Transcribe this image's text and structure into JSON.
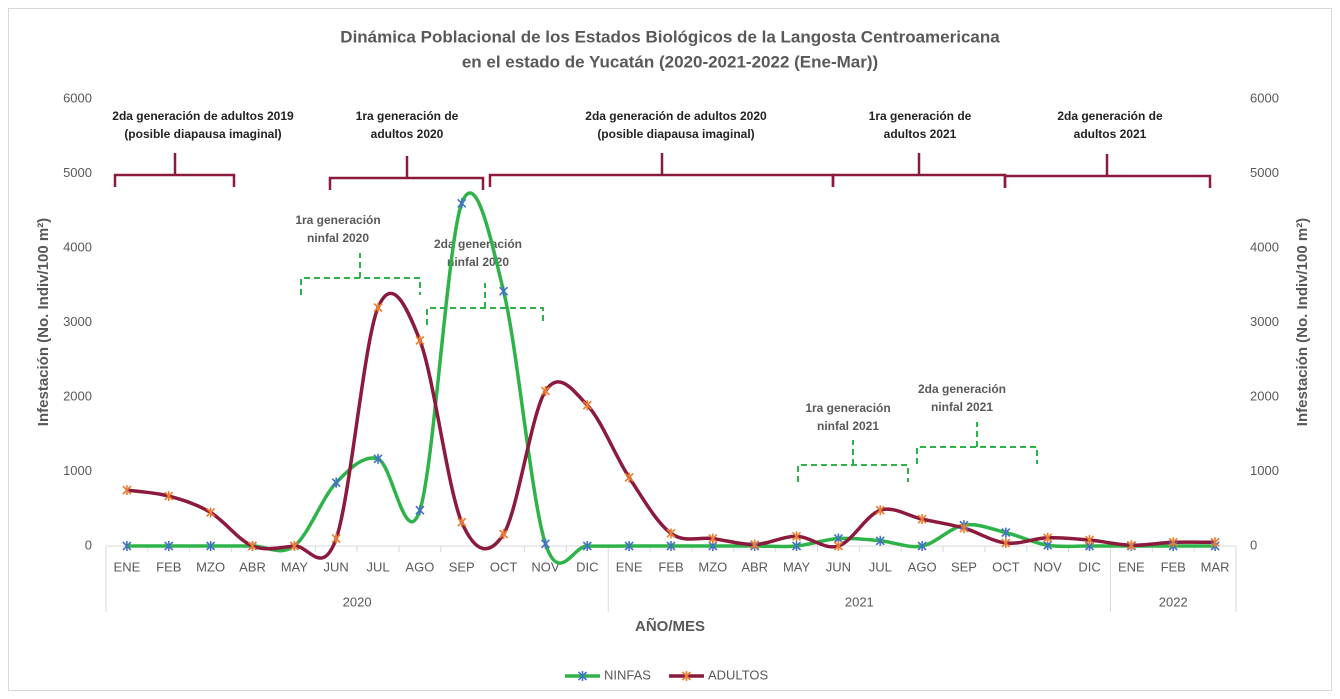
{
  "chart_data": {
    "type": "line",
    "title": [
      "Dinámica Poblacional  de los Estados Biológicos de la Langosta Centroamericana",
      "en el estado de Yucatán (2020-2021-2022 (Ene-Mar))"
    ],
    "x_label": "AÑO/MES",
    "y_label": "Infestación (No. Indiv/100 m²)",
    "y2_label": "Infestación (No. Indiv/100 m²)",
    "years": [
      {
        "label": "2020",
        "months": [
          "ENE",
          "FEB",
          "MZO",
          "ABR",
          "MAY",
          "JUN",
          "JUL",
          "AGO",
          "SEP",
          "OCT",
          "NOV",
          "DIC"
        ]
      },
      {
        "label": "2021",
        "months": [
          "ENE",
          "FEB",
          "MZO",
          "ABR",
          "MAY",
          "JUN",
          "JUL",
          "AGO",
          "SEP",
          "OCT",
          "NOV",
          "DIC"
        ]
      },
      {
        "label": "2022",
        "months": [
          "ENE",
          "FEB",
          "MAR"
        ]
      }
    ],
    "series": [
      {
        "name": "NINFAS",
        "color": "#2eb34a",
        "marker_color": "#4472c4",
        "values": [
          0,
          0,
          0,
          0,
          0,
          850,
          1170,
          480,
          4600,
          3420,
          30,
          0,
          0,
          0,
          0,
          0,
          0,
          100,
          70,
          0,
          280,
          180,
          10,
          0,
          0,
          0,
          0
        ]
      },
      {
        "name": "ADULTOS",
        "color": "#8b1a3d",
        "marker_color": "#ed7d31",
        "values": [
          750,
          670,
          450,
          0,
          0,
          100,
          3200,
          2760,
          320,
          160,
          2080,
          1890,
          920,
          170,
          100,
          20,
          130,
          0,
          480,
          360,
          240,
          40,
          110,
          80,
          10,
          50,
          50
        ]
      }
    ],
    "ylim": [
      0,
      6000
    ],
    "yticks": [
      0,
      1000,
      2000,
      3000,
      4000,
      5000,
      6000
    ],
    "y2lim": [
      0,
      6000
    ],
    "y2ticks": [
      0,
      1000,
      2000,
      3000,
      4000,
      5000,
      6000
    ],
    "grid": false,
    "legend": "bottom",
    "annotations": {
      "adults": {
        "color": "#8b1a3d",
        "items": [
          [
            "2da generación de adultos 2019",
            "(posible diapausa imaginal)"
          ],
          [
            "1ra generación de",
            "adultos 2020"
          ],
          [
            "2da generación de adultos 2020",
            "(posible diapausa imaginal)"
          ],
          [
            "1ra generación de",
            "adultos 2021"
          ],
          [
            "2da generación de",
            "adultos 2021"
          ]
        ]
      },
      "nymphs": {
        "color": "#2eb34a",
        "items": [
          [
            "1ra generación",
            "ninfal 2020"
          ],
          [
            "2da generación",
            "ninfal 2020"
          ],
          [
            "1ra generación",
            "ninfal 2021"
          ],
          [
            "2da generación",
            "ninfal 2021"
          ]
        ]
      }
    }
  }
}
